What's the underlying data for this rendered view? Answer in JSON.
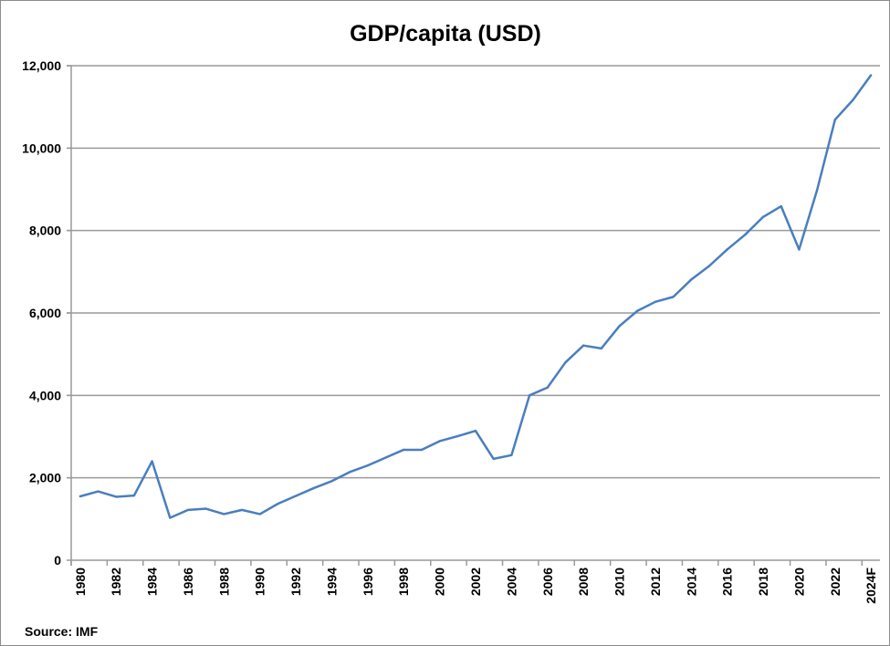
{
  "chart_data": {
    "type": "line",
    "title": "GDP/capita (USD)",
    "xlabel": "",
    "ylabel": "",
    "source": "Source: IMF",
    "ylim": [
      0,
      12000
    ],
    "yticks": [
      0,
      2000,
      4000,
      6000,
      8000,
      10000,
      12000
    ],
    "ytick_labels": [
      "0",
      "2,000",
      "4,000",
      "6,000",
      "8,000",
      "10,000",
      "12,000"
    ],
    "grid": true,
    "legend": "none",
    "line_color": "#4a7ebf",
    "categories": [
      "1980",
      "1981",
      "1982",
      "1983",
      "1984",
      "1985",
      "1986",
      "1987",
      "1988",
      "1989",
      "1990",
      "1991",
      "1992",
      "1993",
      "1994",
      "1995",
      "1996",
      "1997",
      "1998",
      "1999",
      "2000",
      "2001",
      "2002",
      "2003",
      "2004",
      "2005",
      "2006",
      "2007",
      "2008",
      "2009",
      "2010",
      "2011",
      "2012",
      "2013",
      "2014",
      "2015",
      "2016",
      "2017",
      "2018",
      "2019",
      "2020",
      "2021",
      "2022",
      "2023",
      "2024F"
    ],
    "xtick_labels": [
      "1980",
      "1982",
      "1984",
      "1986",
      "1988",
      "1990",
      "1992",
      "1994",
      "1996",
      "1998",
      "2000",
      "2002",
      "2004",
      "2006",
      "2008",
      "2010",
      "2012",
      "2014",
      "2016",
      "2018",
      "2020",
      "2022",
      "2024F"
    ],
    "values": [
      1550,
      1670,
      1540,
      1570,
      2400,
      1030,
      1220,
      1250,
      1120,
      1220,
      1120,
      1370,
      1560,
      1750,
      1920,
      2140,
      2300,
      2490,
      2680,
      2680,
      2890,
      3010,
      3140,
      2460,
      2550,
      4000,
      4190,
      4800,
      5210,
      5140,
      5680,
      6050,
      6270,
      6390,
      6810,
      7140,
      7540,
      7900,
      8330,
      8590,
      7540,
      8980,
      10690,
      11170,
      11770
    ]
  }
}
